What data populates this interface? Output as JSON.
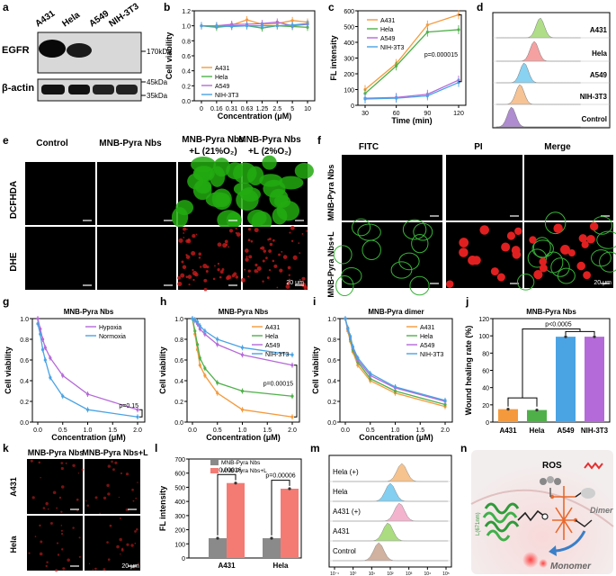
{
  "colors": {
    "orange": "#f59a3c",
    "green": "#4fb04a",
    "purple": "#b56ad9",
    "blue": "#4aa3e3",
    "red": "#ee5b5b",
    "lime": "#9ad24a",
    "gray": "#8a8a8a",
    "salmon": "#f47b74",
    "cellgreen": "#22aa11",
    "cellred": "#c81c1c"
  },
  "panel_letters": [
    "a",
    "b",
    "c",
    "d",
    "e",
    "f",
    "g",
    "h",
    "i",
    "j",
    "k",
    "l",
    "m",
    "n"
  ],
  "panel_a": {
    "cell_lines": [
      "A431",
      "Hela",
      "A549",
      "NIH-3T3"
    ],
    "row_labels": [
      "EGFR",
      "β-actin"
    ],
    "markers": [
      "170kDa",
      "45kDa",
      "35kDa"
    ]
  },
  "panel_e": {
    "columns": [
      "Control",
      "MNB-Pyra Nbs",
      "MNB-Pyra Nbs",
      "MNB-Pyra Nbs"
    ],
    "columns_line2": [
      "",
      "",
      "+L (21%O₂)",
      "+L (2%O₂)"
    ],
    "rows": [
      "DCFHDA",
      "DHE"
    ],
    "scale": "20 μm"
  },
  "panel_f": {
    "columns": [
      "FITC",
      "PI",
      "Merge"
    ],
    "rows": [
      "MNB-Pyra Nbs",
      "MNB-Pyra Nbs+L"
    ],
    "scale": "20 μm"
  },
  "panel_k": {
    "columns": [
      "MNB-Pyra Nbs",
      "MNB-Pyra Nbs+L"
    ],
    "rows": [
      "A431",
      "Hela"
    ],
    "scale": "20 μm"
  },
  "panel_m": {
    "labels": [
      "Hela (+)",
      "Hela",
      "A431 (+)",
      "A431",
      "Control"
    ],
    "xticks": [
      "10⁻¹",
      "10⁰",
      "10¹",
      "10²",
      "10³",
      "10⁴",
      "10⁵"
    ]
  },
  "panel_n": {
    "labels": [
      "ROS",
      "Dimer",
      "Monomer",
      "L(671nm)"
    ]
  },
  "chart_data": [
    {
      "id": "b",
      "type": "line",
      "ylabel": "Cell viability",
      "xlabel": "Concentration (μM)",
      "categories": [
        "0",
        "0.16",
        "0.31",
        "0.63",
        "1.25",
        "2.5",
        "5",
        "10"
      ],
      "ylim": [
        0,
        1.2
      ],
      "yticks": [
        "0.0",
        "0.2",
        "0.4",
        "0.6",
        "0.8",
        "1.0",
        "1.2"
      ],
      "legend": [
        "A431",
        "Hela",
        "A549",
        "NIH-3T3"
      ],
      "series": [
        {
          "name": "A431",
          "values": [
            1.0,
            1.0,
            1.01,
            1.08,
            1.02,
            1.03,
            1.07,
            1.05
          ]
        },
        {
          "name": "Hela",
          "values": [
            1.0,
            0.98,
            1.0,
            1.0,
            0.97,
            1.0,
            0.99,
            0.98
          ]
        },
        {
          "name": "A549",
          "values": [
            1.0,
            1.0,
            1.02,
            1.02,
            1.03,
            1.05,
            1.0,
            1.02
          ]
        },
        {
          "name": "NIH-3T3",
          "values": [
            1.0,
            1.0,
            0.99,
            1.0,
            1.0,
            1.0,
            1.01,
            1.03
          ]
        }
      ]
    },
    {
      "id": "c",
      "type": "line",
      "ylabel": "FL intensity",
      "xlabel": "Time (min)",
      "x": [
        30,
        60,
        90,
        120
      ],
      "xticks": [
        "30",
        "60",
        "90",
        "120"
      ],
      "ylim": [
        0,
        600
      ],
      "yticks": [
        "0",
        "100",
        "200",
        "300",
        "400",
        "500",
        "600"
      ],
      "legend": [
        "A431",
        "Hela",
        "A549",
        "NIH-3T3"
      ],
      "annotation": "p=0.000015",
      "series": [
        {
          "name": "A431",
          "values": [
            100,
            265,
            510,
            575
          ]
        },
        {
          "name": "Hela",
          "values": [
            75,
            250,
            465,
            480
          ]
        },
        {
          "name": "A549",
          "values": [
            45,
            50,
            70,
            160
          ]
        },
        {
          "name": "NIH-3T3",
          "values": [
            40,
            45,
            60,
            145
          ]
        }
      ]
    },
    {
      "id": "g",
      "type": "line",
      "title": "MNB-Pyra Nbs",
      "ylabel": "Cell viability",
      "xlabel": "Concentration (μM)",
      "x": [
        0,
        0.05,
        0.1,
        0.15,
        0.25,
        0.5,
        1.0,
        2.0
      ],
      "xticks": [
        "0.0",
        "0.5",
        "1.0",
        "1.5",
        "2.0"
      ],
      "ylim": [
        0,
        1.0
      ],
      "yticks": [
        "0.0",
        "0.2",
        "0.4",
        "0.6",
        "0.8",
        "1.0"
      ],
      "legend": [
        "Hypoxia",
        "Normoxia"
      ],
      "annotation": "p=0.15",
      "series": [
        {
          "name": "Hypoxia",
          "values": [
            1.0,
            0.9,
            0.8,
            0.72,
            0.62,
            0.45,
            0.27,
            0.12
          ]
        },
        {
          "name": "Normoxia",
          "values": [
            0.95,
            0.85,
            0.7,
            0.6,
            0.43,
            0.25,
            0.12,
            0.05
          ]
        }
      ]
    },
    {
      "id": "h",
      "type": "line",
      "title": "MNB-Pyra Nbs",
      "ylabel": "Cell viability",
      "xlabel": "Concentration (μM)",
      "x": [
        0,
        0.05,
        0.1,
        0.15,
        0.25,
        0.5,
        1.0,
        2.0
      ],
      "xticks": [
        "0.0",
        "0.5",
        "1.0",
        "1.5",
        "2.0"
      ],
      "ylim": [
        0,
        1.0
      ],
      "yticks": [
        "0.0",
        "0.2",
        "0.4",
        "0.6",
        "0.8",
        "1.0"
      ],
      "legend": [
        "A431",
        "Hela",
        "A549",
        "NIH-3T3"
      ],
      "annotation": "p=0.00015",
      "series": [
        {
          "name": "A431",
          "values": [
            1.0,
            0.85,
            0.7,
            0.55,
            0.45,
            0.28,
            0.12,
            0.05
          ]
        },
        {
          "name": "Hela",
          "values": [
            1.0,
            0.88,
            0.75,
            0.62,
            0.52,
            0.38,
            0.3,
            0.25
          ]
        },
        {
          "name": "A549",
          "values": [
            1.0,
            0.98,
            0.95,
            0.9,
            0.85,
            0.75,
            0.65,
            0.55
          ]
        },
        {
          "name": "NIH-3T3",
          "values": [
            1.0,
            0.99,
            0.97,
            0.93,
            0.88,
            0.8,
            0.72,
            0.65
          ]
        }
      ]
    },
    {
      "id": "i",
      "type": "line",
      "title": "MNB-Pyra dimer",
      "ylabel": "Cell viability",
      "xlabel": "Concentration (μM)",
      "x": [
        0,
        0.05,
        0.1,
        0.15,
        0.25,
        0.5,
        1.0,
        2.0
      ],
      "xticks": [
        "0.0",
        "0.5",
        "1.0",
        "1.5",
        "2.0"
      ],
      "ylim": [
        0,
        1.0
      ],
      "yticks": [
        "0.0",
        "0.2",
        "0.4",
        "0.6",
        "0.8",
        "1.0"
      ],
      "legend": [
        "A431",
        "Hela",
        "A549",
        "NIH-3T3"
      ],
      "series": [
        {
          "name": "A431",
          "values": [
            1.0,
            0.88,
            0.78,
            0.68,
            0.55,
            0.4,
            0.28,
            0.15
          ]
        },
        {
          "name": "Hela",
          "values": [
            1.0,
            0.9,
            0.8,
            0.7,
            0.58,
            0.42,
            0.3,
            0.17
          ]
        },
        {
          "name": "A549",
          "values": [
            1.0,
            0.9,
            0.82,
            0.72,
            0.6,
            0.45,
            0.33,
            0.2
          ]
        },
        {
          "name": "NIH-3T3",
          "values": [
            1.0,
            0.91,
            0.83,
            0.73,
            0.62,
            0.47,
            0.34,
            0.21
          ]
        }
      ]
    },
    {
      "id": "j",
      "type": "bar",
      "title": "MNB-Pyra Nbs",
      "ylabel": "Wound healing rate (%)",
      "categories": [
        "A431",
        "Hela",
        "A549",
        "NIH-3T3"
      ],
      "values": [
        15,
        14,
        99,
        99
      ],
      "ylim": [
        0,
        120
      ],
      "yticks": [
        "0",
        "20",
        "40",
        "60",
        "80",
        "100",
        "120"
      ],
      "annotation": "p<0.0005"
    },
    {
      "id": "l",
      "type": "bar",
      "ylabel": "FL intensity",
      "categories": [
        "A431",
        "Hela"
      ],
      "series": [
        {
          "name": "MNB-Pyra Nbs",
          "values": [
            140,
            140
          ]
        },
        {
          "name": "MNB-Pyra Nbs+L",
          "values": [
            530,
            490
          ]
        }
      ],
      "ylim": [
        0,
        700
      ],
      "yticks": [
        "0",
        "100",
        "200",
        "300",
        "400",
        "500",
        "600",
        "700"
      ],
      "legend": [
        "MNB-Pyra Nbs",
        "MNB-Pyra Nbs+L"
      ],
      "annotation": [
        "p=0.00016",
        "p=0.00006"
      ]
    }
  ]
}
